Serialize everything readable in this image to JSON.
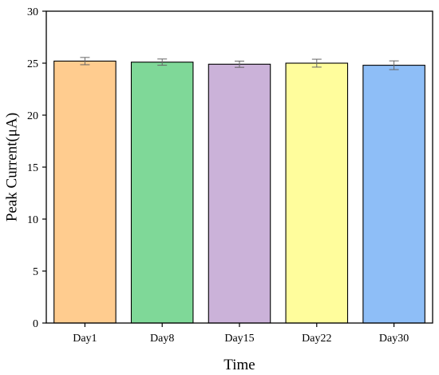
{
  "chart_data": {
    "type": "bar",
    "categories": [
      "Day1",
      "Day8",
      "Day15",
      "Day22",
      "Day30"
    ],
    "values": [
      25.2,
      25.1,
      24.9,
      25.0,
      24.8
    ],
    "errors": [
      0.35,
      0.3,
      0.3,
      0.38,
      0.42
    ],
    "colors": [
      "#FFCC8F",
      "#7FD898",
      "#CBB2D9",
      "#FFFD9C",
      "#8EBEF7"
    ],
    "title": "",
    "xlabel": "Time",
    "ylabel": "Peak Current(μA)",
    "ylim": [
      0,
      30
    ],
    "yticks": [
      0,
      5,
      10,
      15,
      20,
      25,
      30
    ],
    "grid": false,
    "legend": "none"
  }
}
